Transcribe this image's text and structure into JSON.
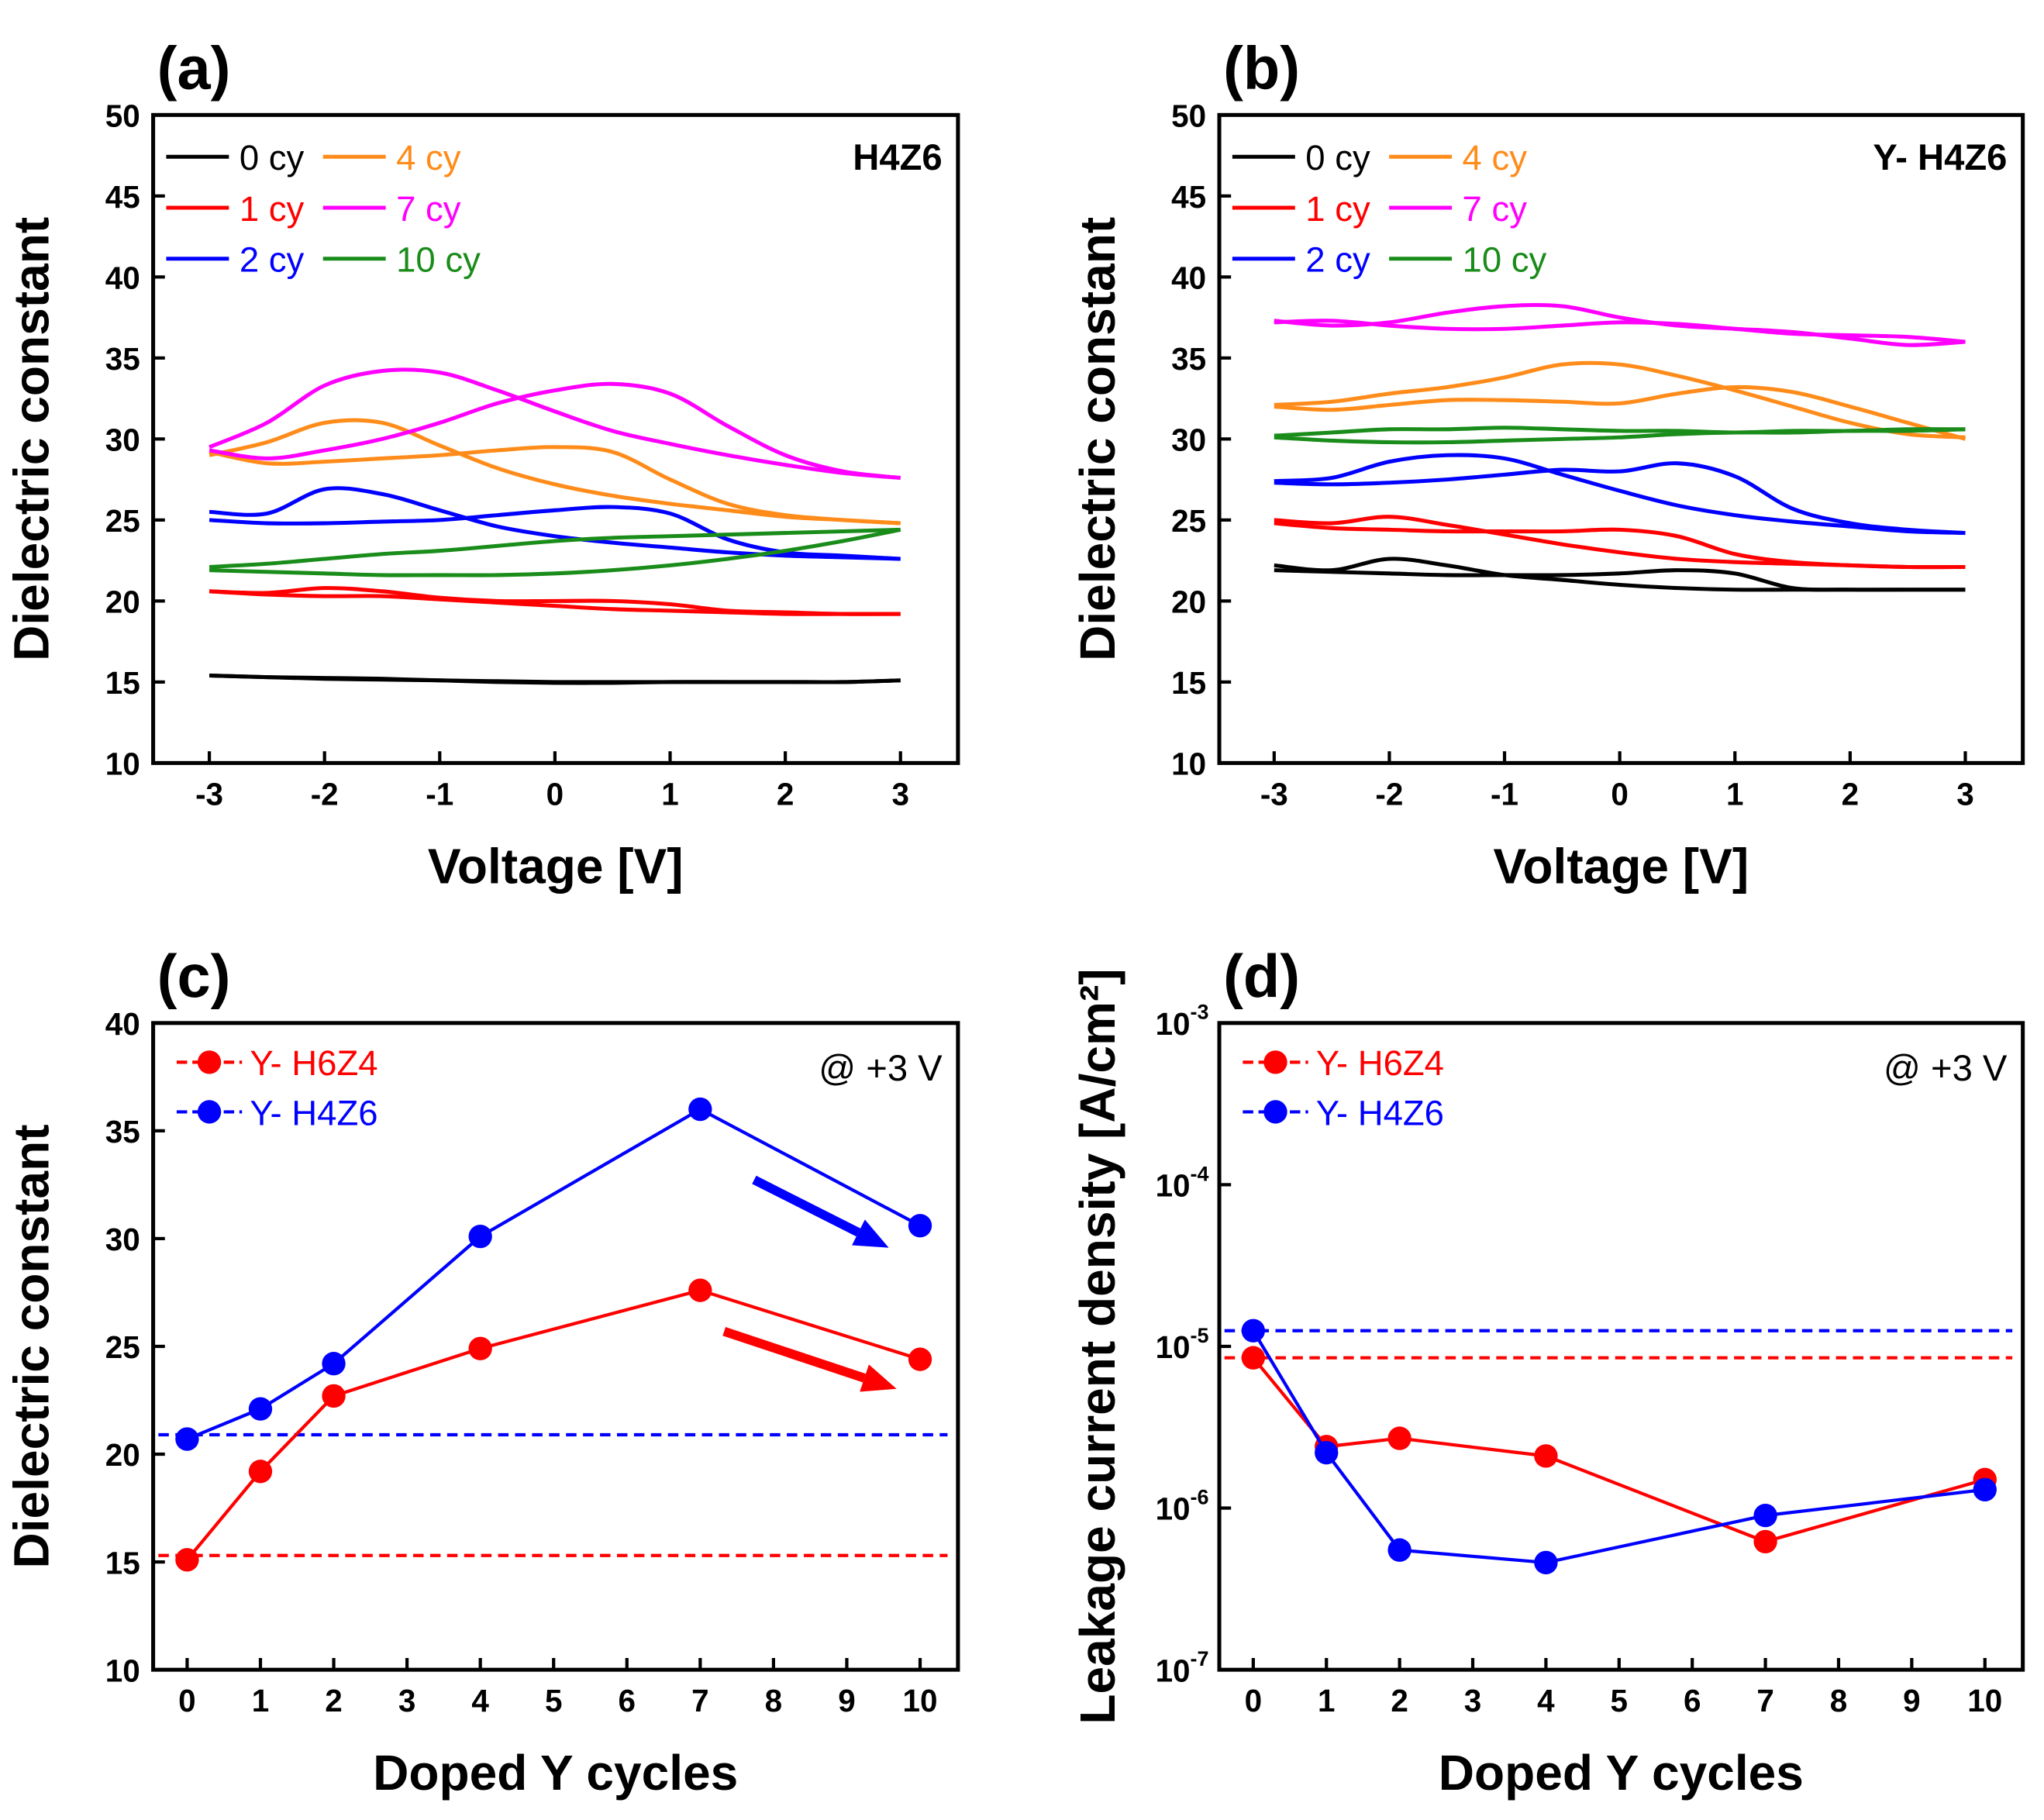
{
  "chart_data": [
    {
      "panel": "(a)",
      "type": "line",
      "annotation": "H4Z6",
      "xlabel": "Voltage [V]",
      "ylabel": "Dielectric constant",
      "xlim": [
        -3.5,
        3.5
      ],
      "ylim": [
        10,
        50
      ],
      "xticks": [
        "-3",
        "-2",
        "-1",
        "0",
        "1",
        "2",
        "3"
      ],
      "yticks": [
        "10",
        "15",
        "20",
        "25",
        "30",
        "35",
        "40",
        "45",
        "50"
      ],
      "legend_placement": "top-left",
      "x": [
        -3,
        -2.5,
        -2,
        -1.5,
        -1,
        -0.5,
        0,
        0.5,
        1,
        1.5,
        2,
        2.5,
        3
      ],
      "series": [
        {
          "name": "0 cy",
          "color": "#000000",
          "sweeps": [
            [
              15.4,
              15.3,
              15.25,
              15.2,
              15.1,
              15.05,
              15.0,
              15.0,
              15.0,
              15.0,
              15.0,
              15.0,
              15.1
            ],
            [
              15.4,
              15.3,
              15.2,
              15.15,
              15.1,
              15.0,
              14.95,
              14.95,
              15.0,
              15.0,
              15.0,
              15.0,
              15.1
            ]
          ]
        },
        {
          "name": "1 cy",
          "color": "#ff0000",
          "sweeps": [
            [
              20.6,
              20.5,
              20.8,
              20.6,
              20.2,
              20.0,
              20.0,
              20.0,
              19.8,
              19.4,
              19.3,
              19.2,
              19.2
            ],
            [
              20.6,
              20.4,
              20.3,
              20.3,
              20.1,
              19.9,
              19.7,
              19.5,
              19.4,
              19.3,
              19.2,
              19.2,
              19.2
            ]
          ]
        },
        {
          "name": "2 cy",
          "color": "#0000ff",
          "sweeps": [
            [
              25.5,
              25.4,
              26.9,
              26.6,
              25.6,
              24.6,
              24.0,
              23.6,
              23.3,
              23.0,
              22.8,
              22.7,
              22.6
            ],
            [
              25.0,
              24.8,
              24.8,
              24.9,
              25.0,
              25.3,
              25.6,
              25.8,
              25.4,
              23.8,
              23.0,
              22.8,
              22.6
            ]
          ]
        },
        {
          "name": "4 cy",
          "color": "#ff8c1a",
          "sweeps": [
            [
              29.0,
              29.8,
              31.0,
              31.0,
              29.6,
              28.2,
              27.2,
              26.5,
              26.0,
              25.6,
              25.2,
              25.0,
              24.8
            ],
            [
              29.2,
              28.5,
              28.6,
              28.8,
              29.0,
              29.3,
              29.5,
              29.2,
              27.5,
              26.0,
              25.3,
              25.0,
              24.8
            ]
          ]
        },
        {
          "name": "7 cy",
          "color": "#ff00ff",
          "sweeps": [
            [
              29.5,
              31.0,
              33.3,
              34.2,
              34.1,
              33.0,
              31.7,
              30.5,
              29.7,
              29.0,
              28.4,
              27.9,
              27.6
            ],
            [
              29.3,
              28.8,
              29.3,
              30.0,
              31.0,
              32.2,
              33.0,
              33.4,
              32.8,
              30.8,
              29.0,
              28.0,
              27.6
            ]
          ]
        },
        {
          "name": "10 cy",
          "color": "#1a8c1a",
          "sweeps": [
            [
              22.1,
              22.3,
              22.6,
              22.9,
              23.1,
              23.4,
              23.7,
              23.9,
              24.0,
              24.1,
              24.2,
              24.3,
              24.4
            ],
            [
              21.9,
              21.8,
              21.7,
              21.6,
              21.6,
              21.6,
              21.7,
              21.9,
              22.2,
              22.6,
              23.1,
              23.7,
              24.4
            ]
          ]
        }
      ]
    },
    {
      "panel": "(b)",
      "type": "line",
      "annotation": "Y- H4Z6",
      "xlabel": "Voltage [V]",
      "ylabel": "Dielectric constant",
      "xlim": [
        -3.5,
        3.5
      ],
      "ylim": [
        10,
        50
      ],
      "xticks": [
        "-3",
        "-2",
        "-1",
        "0",
        "1",
        "2",
        "3"
      ],
      "yticks": [
        "10",
        "15",
        "20",
        "25",
        "30",
        "35",
        "40",
        "45",
        "50"
      ],
      "legend_placement": "top-left",
      "x": [
        -3,
        -2.5,
        -2,
        -1.5,
        -1,
        -0.5,
        0,
        0.5,
        1,
        1.5,
        2,
        2.5,
        3
      ],
      "series": [
        {
          "name": "0 cy",
          "color": "#000000",
          "sweeps": [
            [
              22.2,
              21.9,
              22.6,
              22.2,
              21.6,
              21.3,
              21.0,
              20.8,
              20.7,
              20.7,
              20.7,
              20.7,
              20.7
            ],
            [
              21.9,
              21.8,
              21.7,
              21.6,
              21.6,
              21.6,
              21.7,
              21.9,
              21.7,
              20.8,
              20.7,
              20.7,
              20.7
            ]
          ]
        },
        {
          "name": "1 cy",
          "color": "#ff0000",
          "sweeps": [
            [
              25.0,
              24.8,
              25.2,
              24.7,
              24.1,
              23.5,
              23.0,
              22.6,
              22.4,
              22.3,
              22.2,
              22.1,
              22.1
            ],
            [
              24.8,
              24.5,
              24.4,
              24.3,
              24.3,
              24.3,
              24.4,
              24.0,
              22.9,
              22.4,
              22.2,
              22.1,
              22.1
            ]
          ]
        },
        {
          "name": "2 cy",
          "color": "#0000ff",
          "sweeps": [
            [
              27.4,
              27.6,
              28.6,
              29.0,
              28.8,
              27.8,
              26.8,
              25.9,
              25.3,
              24.9,
              24.6,
              24.3,
              24.2
            ],
            [
              27.3,
              27.2,
              27.3,
              27.5,
              27.8,
              28.1,
              28.0,
              28.5,
              27.7,
              25.7,
              24.8,
              24.4,
              24.2
            ]
          ]
        },
        {
          "name": "4 cy",
          "color": "#ff8c1a",
          "sweeps": [
            [
              32.1,
              32.3,
              32.8,
              33.2,
              33.8,
              34.6,
              34.6,
              33.9,
              33.0,
              32.0,
              31.0,
              30.3,
              30.1
            ],
            [
              32.0,
              31.8,
              32.1,
              32.4,
              32.4,
              32.3,
              32.2,
              32.8,
              33.2,
              32.9,
              32.0,
              31.0,
              30.0
            ]
          ]
        },
        {
          "name": "7 cy",
          "color": "#ff00ff",
          "sweeps": [
            [
              37.2,
              37.3,
              37.0,
              36.8,
              36.8,
              37.0,
              37.2,
              37.1,
              36.8,
              36.5,
              36.4,
              36.3,
              36.0
            ],
            [
              37.3,
              37.0,
              37.2,
              37.8,
              38.2,
              38.2,
              37.5,
              37.0,
              36.8,
              36.6,
              36.2,
              35.8,
              36.0
            ]
          ]
        },
        {
          "name": "10 cy",
          "color": "#1a8c1a",
          "sweeps": [
            [
              30.2,
              30.4,
              30.6,
              30.6,
              30.7,
              30.6,
              30.5,
              30.5,
              30.4,
              30.5,
              30.5,
              30.6,
              30.6
            ],
            [
              30.1,
              29.9,
              29.8,
              29.8,
              29.9,
              30.0,
              30.1,
              30.3,
              30.4,
              30.4,
              30.5,
              30.5,
              30.6
            ]
          ]
        }
      ]
    },
    {
      "panel": "(c)",
      "type": "line",
      "annotation": "@ +3 V",
      "xlabel": "Doped Y cycles",
      "ylabel": "Dielectric constant",
      "xlim": [
        -0.5,
        10.5
      ],
      "ylim": [
        10,
        40
      ],
      "xticks": [
        "0",
        "1",
        "2",
        "3",
        "4",
        "5",
        "6",
        "7",
        "8",
        "9",
        "10"
      ],
      "yticks": [
        "10",
        "15",
        "20",
        "25",
        "30",
        "35",
        "40"
      ],
      "legend_placement": "top-left",
      "x": [
        0,
        1,
        2,
        4,
        7,
        10
      ],
      "series": [
        {
          "name": "Y- H6Z4",
          "color": "#ff0000",
          "values": [
            15.1,
            19.2,
            22.7,
            24.9,
            27.6,
            24.4
          ],
          "reference": 15.3
        },
        {
          "name": "Y- H4Z6",
          "color": "#0000ff",
          "values": [
            20.7,
            22.1,
            24.2,
            30.1,
            36.0,
            30.6
          ],
          "reference": 20.9
        }
      ]
    },
    {
      "panel": "(d)",
      "type": "line",
      "annotation": "@ +3 V",
      "xlabel": "Doped Y cycles",
      "ylabel": "Leakage current density [A/cm²]",
      "yscale": "log",
      "xlim": [
        -0.5,
        10.5
      ],
      "ylim": [
        1e-07,
        0.001
      ],
      "xticks": [
        "0",
        "1",
        "2",
        "3",
        "4",
        "5",
        "6",
        "7",
        "8",
        "9",
        "10"
      ],
      "yticks": [
        "10^-7",
        "10^-6",
        "10^-5",
        "10^-4",
        "10^-3"
      ],
      "legend_placement": "top-left",
      "x": [
        0,
        1,
        2,
        4,
        7,
        10
      ],
      "series": [
        {
          "name": "Y- H6Z4",
          "color": "#ff0000",
          "values": [
            8.5e-06,
            2.4e-06,
            2.7e-06,
            2.1e-06,
            6.2e-07,
            1.5e-06
          ],
          "reference": 8.5e-06
        },
        {
          "name": "Y- H4Z6",
          "color": "#0000ff",
          "values": [
            1.25e-05,
            2.2e-06,
            5.5e-07,
            4.6e-07,
            9e-07,
            1.3e-06
          ],
          "reference": 1.25e-05
        }
      ]
    }
  ]
}
